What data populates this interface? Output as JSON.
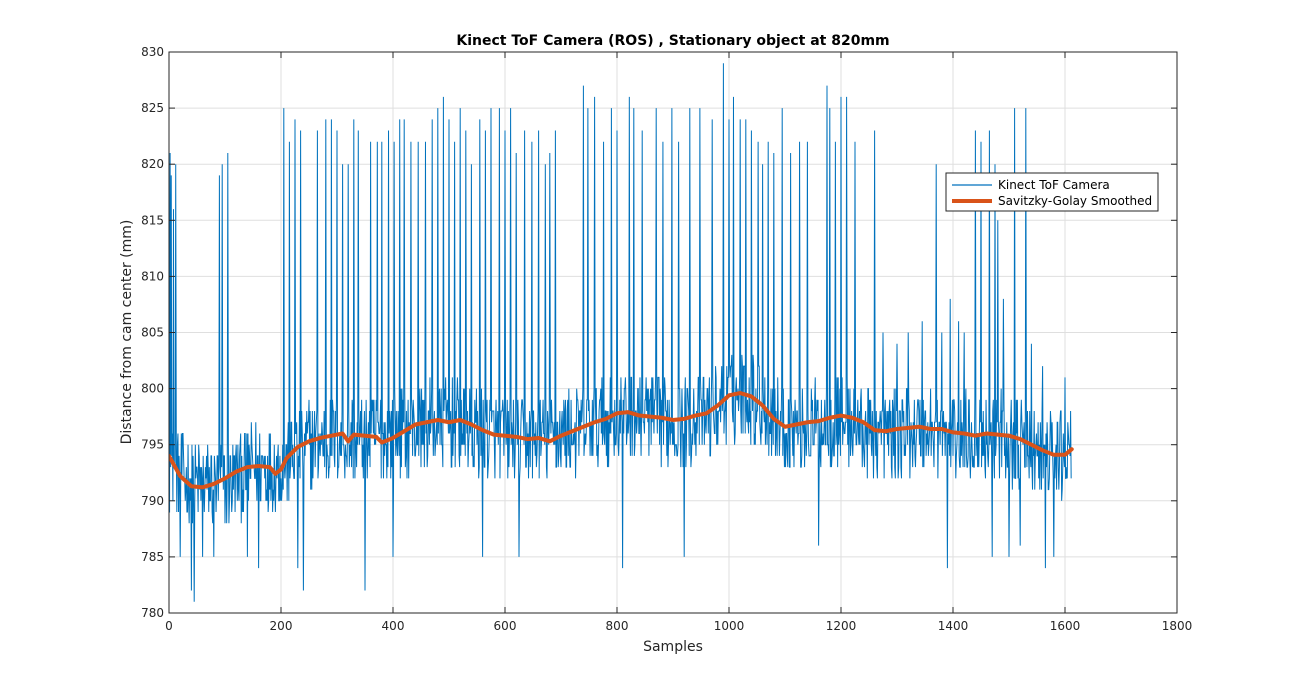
{
  "chart_data": {
    "type": "line",
    "title": "Kinect ToF Camera (ROS) , Stationary object at 820mm",
    "xlabel": "Samples",
    "ylabel": "Distance from cam center (mm)",
    "xlim": [
      0,
      1800
    ],
    "ylim": [
      780,
      830
    ],
    "xticks": [
      0,
      200,
      400,
      600,
      800,
      1000,
      1200,
      1400,
      1600,
      1800
    ],
    "yticks": [
      780,
      785,
      790,
      795,
      800,
      805,
      810,
      815,
      820,
      825,
      830
    ],
    "grid": true,
    "legend_position": "upper-right",
    "colors": {
      "raw": "#0072BD",
      "smooth": "#D95319",
      "axis": "#262626",
      "grid": "#dfdfdf"
    },
    "raw_series": {
      "name": "Kinect ToF Camera",
      "n_samples": 1612,
      "baseline_x": [
        0,
        50,
        100,
        150,
        200,
        250,
        300,
        350,
        400,
        450,
        500,
        550,
        600,
        650,
        700,
        750,
        800,
        850,
        900,
        950,
        1000,
        1030,
        1050,
        1100,
        1150,
        1200,
        1250,
        1300,
        1350,
        1400,
        1450,
        1500,
        1550,
        1600,
        1612
      ],
      "baseline_y": [
        793,
        791.5,
        791.5,
        793,
        793,
        795,
        795.5,
        795.5,
        796,
        796.5,
        797,
        796,
        795.5,
        795.5,
        796,
        796.5,
        797.5,
        797.5,
        797,
        797.5,
        799,
        799.5,
        799,
        796.5,
        796.5,
        797.5,
        796,
        796,
        796.5,
        795.5,
        796,
        795.5,
        794,
        794,
        794.5
      ],
      "spikes": [
        [
          2,
          821
        ],
        [
          4,
          819
        ],
        [
          8,
          816
        ],
        [
          12,
          820
        ],
        [
          90,
          819
        ],
        [
          95,
          820
        ],
        [
          105,
          821
        ],
        [
          205,
          825
        ],
        [
          215,
          822
        ],
        [
          225,
          824
        ],
        [
          235,
          823
        ],
        [
          265,
          823
        ],
        [
          280,
          824
        ],
        [
          290,
          824
        ],
        [
          300,
          823
        ],
        [
          310,
          820
        ],
        [
          320,
          820
        ],
        [
          330,
          824
        ],
        [
          338,
          823
        ],
        [
          350,
          823
        ],
        [
          360,
          822
        ],
        [
          372,
          822
        ],
        [
          380,
          822
        ],
        [
          392,
          823
        ],
        [
          402,
          822
        ],
        [
          412,
          824
        ],
        [
          420,
          824
        ],
        [
          432,
          822
        ],
        [
          445,
          822
        ],
        [
          458,
          822
        ],
        [
          470,
          824
        ],
        [
          480,
          825
        ],
        [
          490,
          826
        ],
        [
          500,
          824
        ],
        [
          510,
          822
        ],
        [
          520,
          825
        ],
        [
          530,
          823
        ],
        [
          540,
          820
        ],
        [
          555,
          824
        ],
        [
          565,
          823
        ],
        [
          575,
          825
        ],
        [
          590,
          825
        ],
        [
          600,
          823
        ],
        [
          610,
          825
        ],
        [
          620,
          821
        ],
        [
          635,
          823
        ],
        [
          648,
          822
        ],
        [
          660,
          823
        ],
        [
          672,
          820
        ],
        [
          680,
          821
        ],
        [
          690,
          823
        ],
        [
          740,
          827
        ],
        [
          748,
          825
        ],
        [
          760,
          826
        ],
        [
          776,
          822
        ],
        [
          790,
          825
        ],
        [
          800,
          823
        ],
        [
          810,
          822
        ],
        [
          822,
          826
        ],
        [
          830,
          825
        ],
        [
          845,
          823
        ],
        [
          870,
          825
        ],
        [
          882,
          822
        ],
        [
          898,
          825
        ],
        [
          910,
          822
        ],
        [
          930,
          825
        ],
        [
          948,
          825
        ],
        [
          970,
          824
        ],
        [
          990,
          829
        ],
        [
          1000,
          824
        ],
        [
          1008,
          826
        ],
        [
          1020,
          824
        ],
        [
          1030,
          824
        ],
        [
          1040,
          823
        ],
        [
          1052,
          822
        ],
        [
          1060,
          820
        ],
        [
          1070,
          822
        ],
        [
          1080,
          821
        ],
        [
          1095,
          825
        ],
        [
          1110,
          821
        ],
        [
          1126,
          822
        ],
        [
          1140,
          822
        ],
        [
          1160,
          820
        ],
        [
          1175,
          827
        ],
        [
          1180,
          825
        ],
        [
          1190,
          822
        ],
        [
          1200,
          826
        ],
        [
          1210,
          826
        ],
        [
          1225,
          822
        ],
        [
          1260,
          823
        ],
        [
          1275,
          805
        ],
        [
          1300,
          804
        ],
        [
          1320,
          805
        ],
        [
          1345,
          806
        ],
        [
          1370,
          820
        ],
        [
          1380,
          805
        ],
        [
          1395,
          808
        ],
        [
          1410,
          806
        ],
        [
          1420,
          805
        ],
        [
          1440,
          823
        ],
        [
          1450,
          822
        ],
        [
          1465,
          823
        ],
        [
          1470,
          823
        ],
        [
          1475,
          820
        ],
        [
          1480,
          815
        ],
        [
          1490,
          808
        ],
        [
          1500,
          821
        ],
        [
          1510,
          825
        ],
        [
          1520,
          818
        ],
        [
          1530,
          825
        ],
        [
          1540,
          804
        ],
        [
          1560,
          802
        ],
        [
          1580,
          805
        ],
        [
          1600,
          801
        ]
      ],
      "dips": [
        [
          20,
          785
        ],
        [
          40,
          782
        ],
        [
          45,
          781
        ],
        [
          60,
          785
        ],
        [
          80,
          785
        ],
        [
          140,
          785
        ],
        [
          160,
          784
        ],
        [
          230,
          784
        ],
        [
          240,
          782
        ],
        [
          350,
          782
        ],
        [
          400,
          785
        ],
        [
          560,
          785
        ],
        [
          625,
          785
        ],
        [
          810,
          784
        ],
        [
          920,
          785
        ],
        [
          1160,
          786
        ],
        [
          1390,
          784
        ],
        [
          1470,
          785
        ],
        [
          1500,
          785
        ],
        [
          1520,
          786
        ],
        [
          1565,
          784
        ],
        [
          1580,
          785
        ]
      ],
      "noise_halfwidth_mm": 4,
      "seed": 12345
    },
    "smooth_series": {
      "name": "Savitzky-Golay Smoothed",
      "x": [
        0,
        20,
        40,
        60,
        80,
        100,
        120,
        140,
        160,
        180,
        190,
        200,
        210,
        230,
        250,
        270,
        290,
        310,
        320,
        330,
        350,
        370,
        380,
        400,
        420,
        440,
        460,
        480,
        500,
        520,
        540,
        560,
        580,
        600,
        620,
        640,
        660,
        680,
        700,
        720,
        740,
        760,
        780,
        800,
        820,
        840,
        860,
        880,
        900,
        920,
        940,
        960,
        980,
        1000,
        1020,
        1040,
        1060,
        1080,
        1100,
        1120,
        1140,
        1160,
        1180,
        1200,
        1220,
        1240,
        1260,
        1280,
        1300,
        1320,
        1340,
        1360,
        1380,
        1400,
        1420,
        1440,
        1460,
        1480,
        1500,
        1520,
        1540,
        1560,
        1580,
        1600,
        1612
      ],
      "y": [
        794,
        792.2,
        791.3,
        791.2,
        791.5,
        792.0,
        792.6,
        793.0,
        793.1,
        793.0,
        792.4,
        792.8,
        793.8,
        794.8,
        795.3,
        795.6,
        795.8,
        796.0,
        795.3,
        795.9,
        795.8,
        795.7,
        795.2,
        795.6,
        796.2,
        796.8,
        797.0,
        797.2,
        797.0,
        797.2,
        796.8,
        796.3,
        795.9,
        795.8,
        795.7,
        795.5,
        795.6,
        795.3,
        795.8,
        796.2,
        796.6,
        797.0,
        797.3,
        797.8,
        797.9,
        797.6,
        797.5,
        797.4,
        797.2,
        797.3,
        797.6,
        797.8,
        798.5,
        799.4,
        799.6,
        799.3,
        798.5,
        797.3,
        796.6,
        796.8,
        797.0,
        797.1,
        797.4,
        797.6,
        797.4,
        797.0,
        796.3,
        796.2,
        796.4,
        796.5,
        796.6,
        796.4,
        796.4,
        796.1,
        796.0,
        795.8,
        796.0,
        795.9,
        795.8,
        795.5,
        795.0,
        794.5,
        794.1,
        794.1,
        794.6
      ]
    }
  }
}
